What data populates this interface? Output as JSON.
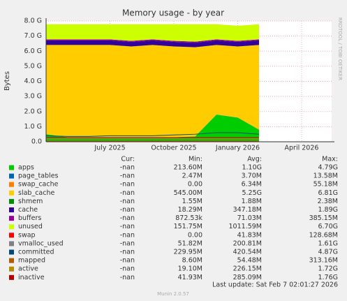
{
  "chart_data": {
    "type": "area",
    "title": "Memory usage - by year",
    "y_label": "Bytes",
    "side_text": "RRDTOOL / TOBI OETIKER",
    "last_update": "Last update: Sat Feb  7 02:01:27 2026",
    "footer": "Munin 2.0.57",
    "legend_headers": [
      "Cur:",
      "Min:",
      "Avg:",
      "Max:"
    ],
    "categories": [
      null,
      null,
      null,
      "July 2025",
      null,
      null,
      "October 2025",
      null,
      null,
      "January 2026",
      null,
      null,
      "April 2026",
      null
    ],
    "ylim": [
      0,
      8
    ],
    "yticks": [
      {
        "value": 0,
        "label": "0.0"
      },
      {
        "value": 1,
        "label": "1.0 G"
      },
      {
        "value": 2,
        "label": "2.0 G"
      },
      {
        "value": 3,
        "label": "3.0 G"
      },
      {
        "value": 4,
        "label": "4.0 G"
      },
      {
        "value": 5,
        "label": "5.0 G"
      },
      {
        "value": 6,
        "label": "6.0 G"
      },
      {
        "value": 7,
        "label": "7.0 G"
      },
      {
        "value": 8,
        "label": "8.0 G"
      }
    ],
    "grid": true,
    "series": [
      {
        "name": "apps",
        "color": "#00cc00",
        "stack": true,
        "stats": [
          "-nan",
          "213.60M",
          "1.10G",
          "4.79G"
        ],
        "values": [
          0.5,
          0.3,
          0.3,
          0.3,
          0.3,
          0.3,
          0.3,
          0.35,
          1.8,
          1.6,
          0.8,
          null,
          null,
          null
        ]
      },
      {
        "name": "page_tables",
        "color": "#0066b3",
        "stack": true,
        "stats": [
          "-nan",
          "2.47M",
          "3.70M",
          "13.58M"
        ],
        "values": [
          0.004,
          0.004,
          0.004,
          0.004,
          0.004,
          0.004,
          0.004,
          0.004,
          0.004,
          0.004,
          0.004,
          null,
          null,
          null
        ]
      },
      {
        "name": "swap_cache",
        "color": "#ff8000",
        "stack": true,
        "stats": [
          "-nan",
          "0.00",
          "6.34M",
          "55.18M"
        ],
        "values": [
          0.006,
          0.006,
          0.006,
          0.006,
          0.006,
          0.006,
          0.006,
          0.006,
          0.006,
          0.006,
          0.006,
          null,
          null,
          null
        ]
      },
      {
        "name": "slab_cache",
        "color": "#ffcc00",
        "stack": true,
        "stats": [
          "-nan",
          "545.00M",
          "5.25G",
          "6.81G"
        ],
        "values": [
          5.9,
          6.1,
          6.1,
          6.1,
          6.0,
          6.1,
          6.0,
          5.9,
          4.6,
          4.7,
          5.6,
          null,
          null,
          null
        ]
      },
      {
        "name": "shmem",
        "color": "#008f00",
        "stack": true,
        "stats": [
          "-nan",
          "1.55M",
          "1.88M",
          "2.38M"
        ],
        "values": [
          0.002,
          0.002,
          0.002,
          0.002,
          0.002,
          0.002,
          0.002,
          0.002,
          0.002,
          0.002,
          0.002,
          null,
          null,
          null
        ]
      },
      {
        "name": "cache",
        "color": "#330099",
        "stack": true,
        "stats": [
          "-nan",
          "18.29M",
          "347.18M",
          "1.89G"
        ],
        "values": [
          0.3,
          0.3,
          0.3,
          0.3,
          0.3,
          0.3,
          0.3,
          0.3,
          0.3,
          0.3,
          0.3,
          null,
          null,
          null
        ]
      },
      {
        "name": "buffers",
        "color": "#990099",
        "stack": true,
        "stats": [
          "-nan",
          "872.53k",
          "71.03M",
          "385.15M"
        ],
        "values": [
          0.07,
          0.07,
          0.07,
          0.07,
          0.07,
          0.07,
          0.07,
          0.07,
          0.07,
          0.07,
          0.07,
          null,
          null,
          null
        ]
      },
      {
        "name": "unused",
        "color": "#ccff00",
        "stack": true,
        "stats": [
          "-nan",
          "151.75M",
          "1011.59M",
          "6.70G"
        ],
        "values": [
          1.0,
          1.0,
          1.0,
          1.0,
          1.1,
          1.0,
          1.1,
          1.15,
          1.0,
          1.0,
          1.0,
          null,
          null,
          null
        ]
      },
      {
        "name": "swap",
        "color": "#ff0000",
        "stack": false,
        "stats": [
          "-nan",
          "0.00",
          "41.83M",
          "128.68M"
        ],
        "values": [
          0.04,
          0.04,
          0.04,
          0.04,
          0.04,
          0.04,
          0.04,
          0.04,
          0.04,
          0.04,
          0.04,
          null,
          null,
          null
        ]
      },
      {
        "name": "vmalloc_used",
        "color": "#808080",
        "stack": false,
        "stats": [
          "-nan",
          "51.82M",
          "200.81M",
          "1.61G"
        ],
        "values": [
          0.2,
          0.2,
          0.2,
          0.2,
          0.2,
          0.2,
          0.2,
          0.2,
          0.2,
          0.2,
          0.2,
          null,
          null,
          null
        ]
      },
      {
        "name": "committed",
        "color": "#00487d",
        "stack": false,
        "stats": [
          "-nan",
          "229.95M",
          "420.54M",
          "4.87G"
        ],
        "values": [
          0.4,
          0.35,
          0.35,
          0.4,
          0.4,
          0.4,
          0.45,
          0.5,
          0.6,
          0.6,
          0.5,
          null,
          null,
          null
        ]
      },
      {
        "name": "mapped",
        "color": "#b35a00",
        "stack": false,
        "stats": [
          "-nan",
          "8.60M",
          "54.48M",
          "313.16M"
        ],
        "values": [
          0.05,
          0.05,
          0.05,
          0.05,
          0.05,
          0.05,
          0.05,
          0.05,
          0.05,
          0.05,
          0.05,
          null,
          null,
          null
        ]
      },
      {
        "name": "active",
        "color": "#b38f00",
        "stack": false,
        "stats": [
          "-nan",
          "19.10M",
          "226.15M",
          "1.72G"
        ],
        "values": [
          0.22,
          0.22,
          0.22,
          0.22,
          0.22,
          0.22,
          0.22,
          0.22,
          0.22,
          0.22,
          0.22,
          null,
          null,
          null
        ]
      },
      {
        "name": "inactive",
        "color": "#b30000",
        "stack": false,
        "stats": [
          "-nan",
          "41.93M",
          "285.09M",
          "1.76G"
        ],
        "values": [
          0.28,
          0.28,
          0.28,
          0.28,
          0.28,
          0.28,
          0.28,
          0.28,
          0.28,
          0.28,
          0.28,
          null,
          null,
          null
        ]
      }
    ]
  }
}
